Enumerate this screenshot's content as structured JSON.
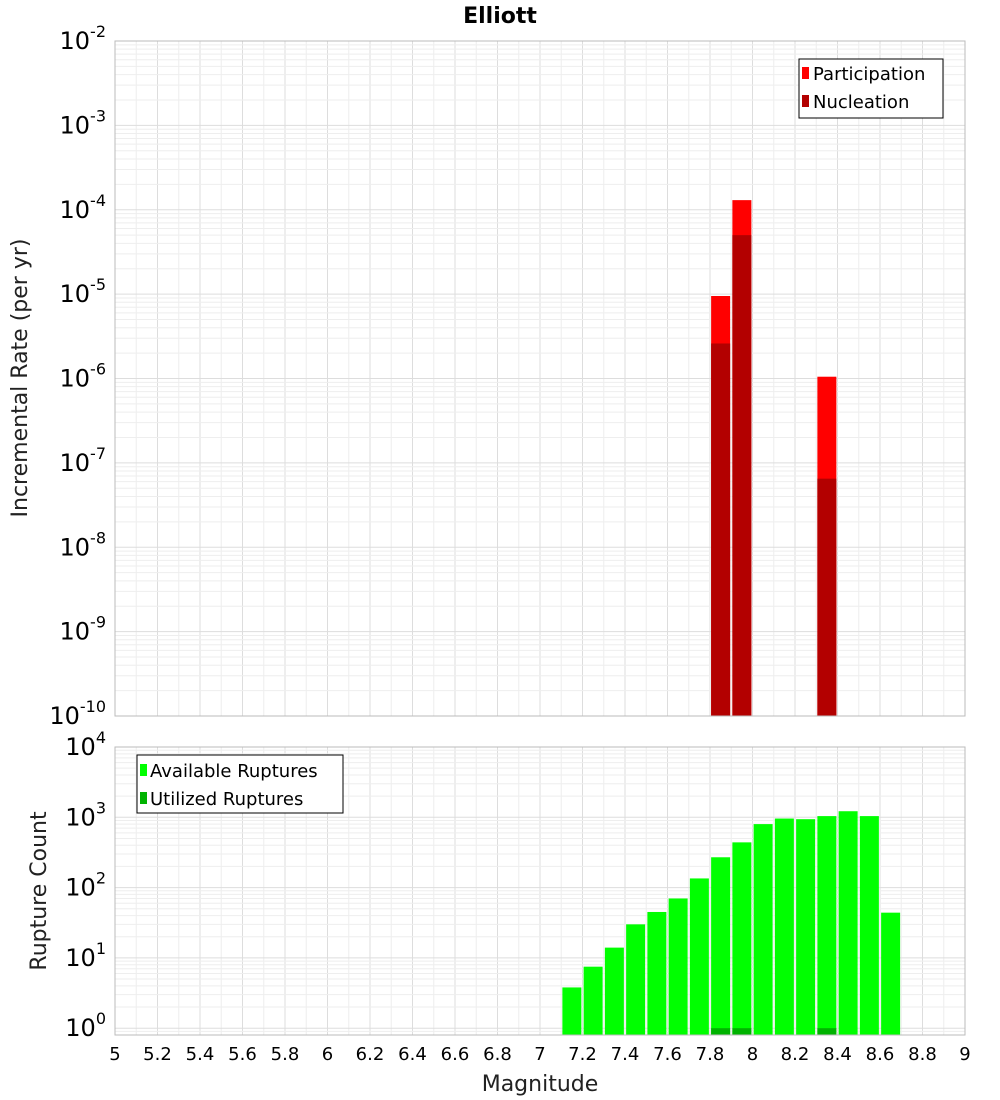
{
  "chart_data": [
    {
      "type": "bar",
      "title": "Elliott",
      "xlabel": "",
      "ylabel": "Incremental Rate (per yr)",
      "yscale": "log",
      "ylim": [
        1e-10,
        0.01
      ],
      "xlim": [
        5,
        9
      ],
      "grid": true,
      "legend_position": "top-right",
      "y_tick_labels": [
        {
          "base": "10",
          "exp": "-2"
        },
        {
          "base": "10",
          "exp": "-3"
        },
        {
          "base": "10",
          "exp": "-4"
        },
        {
          "base": "10",
          "exp": "-5"
        },
        {
          "base": "10",
          "exp": "-6"
        },
        {
          "base": "10",
          "exp": "-7"
        },
        {
          "base": "10",
          "exp": "-8"
        },
        {
          "base": "10",
          "exp": "-9"
        },
        {
          "base": "10",
          "exp": "-10"
        }
      ],
      "x": [
        7.85,
        7.95,
        8.35
      ],
      "series": [
        {
          "name": "Participation",
          "color": "#ff0000",
          "values": [
            9.5e-06,
            0.00013,
            1.05e-06
          ]
        },
        {
          "name": "Nucleation",
          "color": "#b30000",
          "values": [
            2.6e-06,
            5e-05,
            6.5e-08
          ]
        }
      ]
    },
    {
      "type": "bar",
      "xlabel": "Magnitude",
      "ylabel": "Rupture Count",
      "yscale": "log",
      "ylim": [
        0.8,
        10000.0
      ],
      "xlim": [
        5,
        9
      ],
      "grid": true,
      "legend_position": "top-left",
      "y_tick_labels": [
        {
          "base": "10",
          "exp": "4"
        },
        {
          "base": "10",
          "exp": "3"
        },
        {
          "base": "10",
          "exp": "2"
        },
        {
          "base": "10",
          "exp": "1"
        },
        {
          "base": "10",
          "exp": "0"
        }
      ],
      "x_tick_labels": [
        "5",
        "5.2",
        "5.4",
        "5.6",
        "5.8",
        "6",
        "6.2",
        "6.4",
        "6.6",
        "6.8",
        "7",
        "7.2",
        "7.4",
        "7.6",
        "7.8",
        "8",
        "8.2",
        "8.4",
        "8.6",
        "8.8",
        "9"
      ],
      "x": [
        7.15,
        7.25,
        7.35,
        7.45,
        7.55,
        7.65,
        7.75,
        7.85,
        7.95,
        8.05,
        8.15,
        8.25,
        8.35,
        8.45,
        8.55,
        8.65
      ],
      "series": [
        {
          "name": "Available Ruptures",
          "color": "#00ff00",
          "values": [
            3.8,
            7.5,
            14,
            30,
            45,
            70,
            135,
            270,
            440,
            800,
            960,
            940,
            1040,
            1220,
            1040,
            44
          ]
        },
        {
          "name": "Utilized Ruptures",
          "color": "#00b300",
          "values": [
            null,
            null,
            null,
            null,
            null,
            null,
            null,
            1,
            1,
            null,
            null,
            null,
            1,
            null,
            null,
            null
          ]
        }
      ]
    }
  ]
}
